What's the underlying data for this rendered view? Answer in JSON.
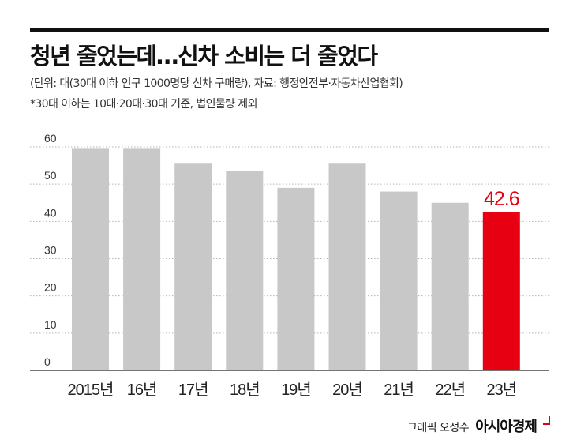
{
  "header": {
    "title": "청년 줄었는데…신차 소비는 더 줄었다",
    "subtitle": "(단위: 대(30대 이하 인구 1000명당 신차 구매량), 자료: 행정안전부·자동차산업협회)",
    "note": "*30대 이하는 10대·20대·30대 기준, 법인물량 제외"
  },
  "footer": {
    "artist": "그래픽 오성수",
    "brand": "아시아경제"
  },
  "colors": {
    "bar": "#c8c8c8",
    "highlight": "#e60012",
    "text": "#111111"
  },
  "chart_data": {
    "type": "bar",
    "title": "청년 줄었는데…신차 소비는 더 줄었다",
    "categories": [
      "2015년",
      "16년",
      "17년",
      "18년",
      "19년",
      "20년",
      "21년",
      "22년",
      "23년"
    ],
    "values": [
      59.5,
      59.5,
      55.5,
      53.5,
      49,
      55.5,
      48,
      45,
      42.6
    ],
    "highlight_index": 8,
    "data_labels": [
      {
        "index": 8,
        "text": "42.6"
      }
    ],
    "yticks": [
      0,
      10,
      20,
      30,
      40,
      50,
      60
    ],
    "ylim": [
      0,
      60
    ],
    "grid": "dotted horizontal",
    "legend": "none"
  }
}
